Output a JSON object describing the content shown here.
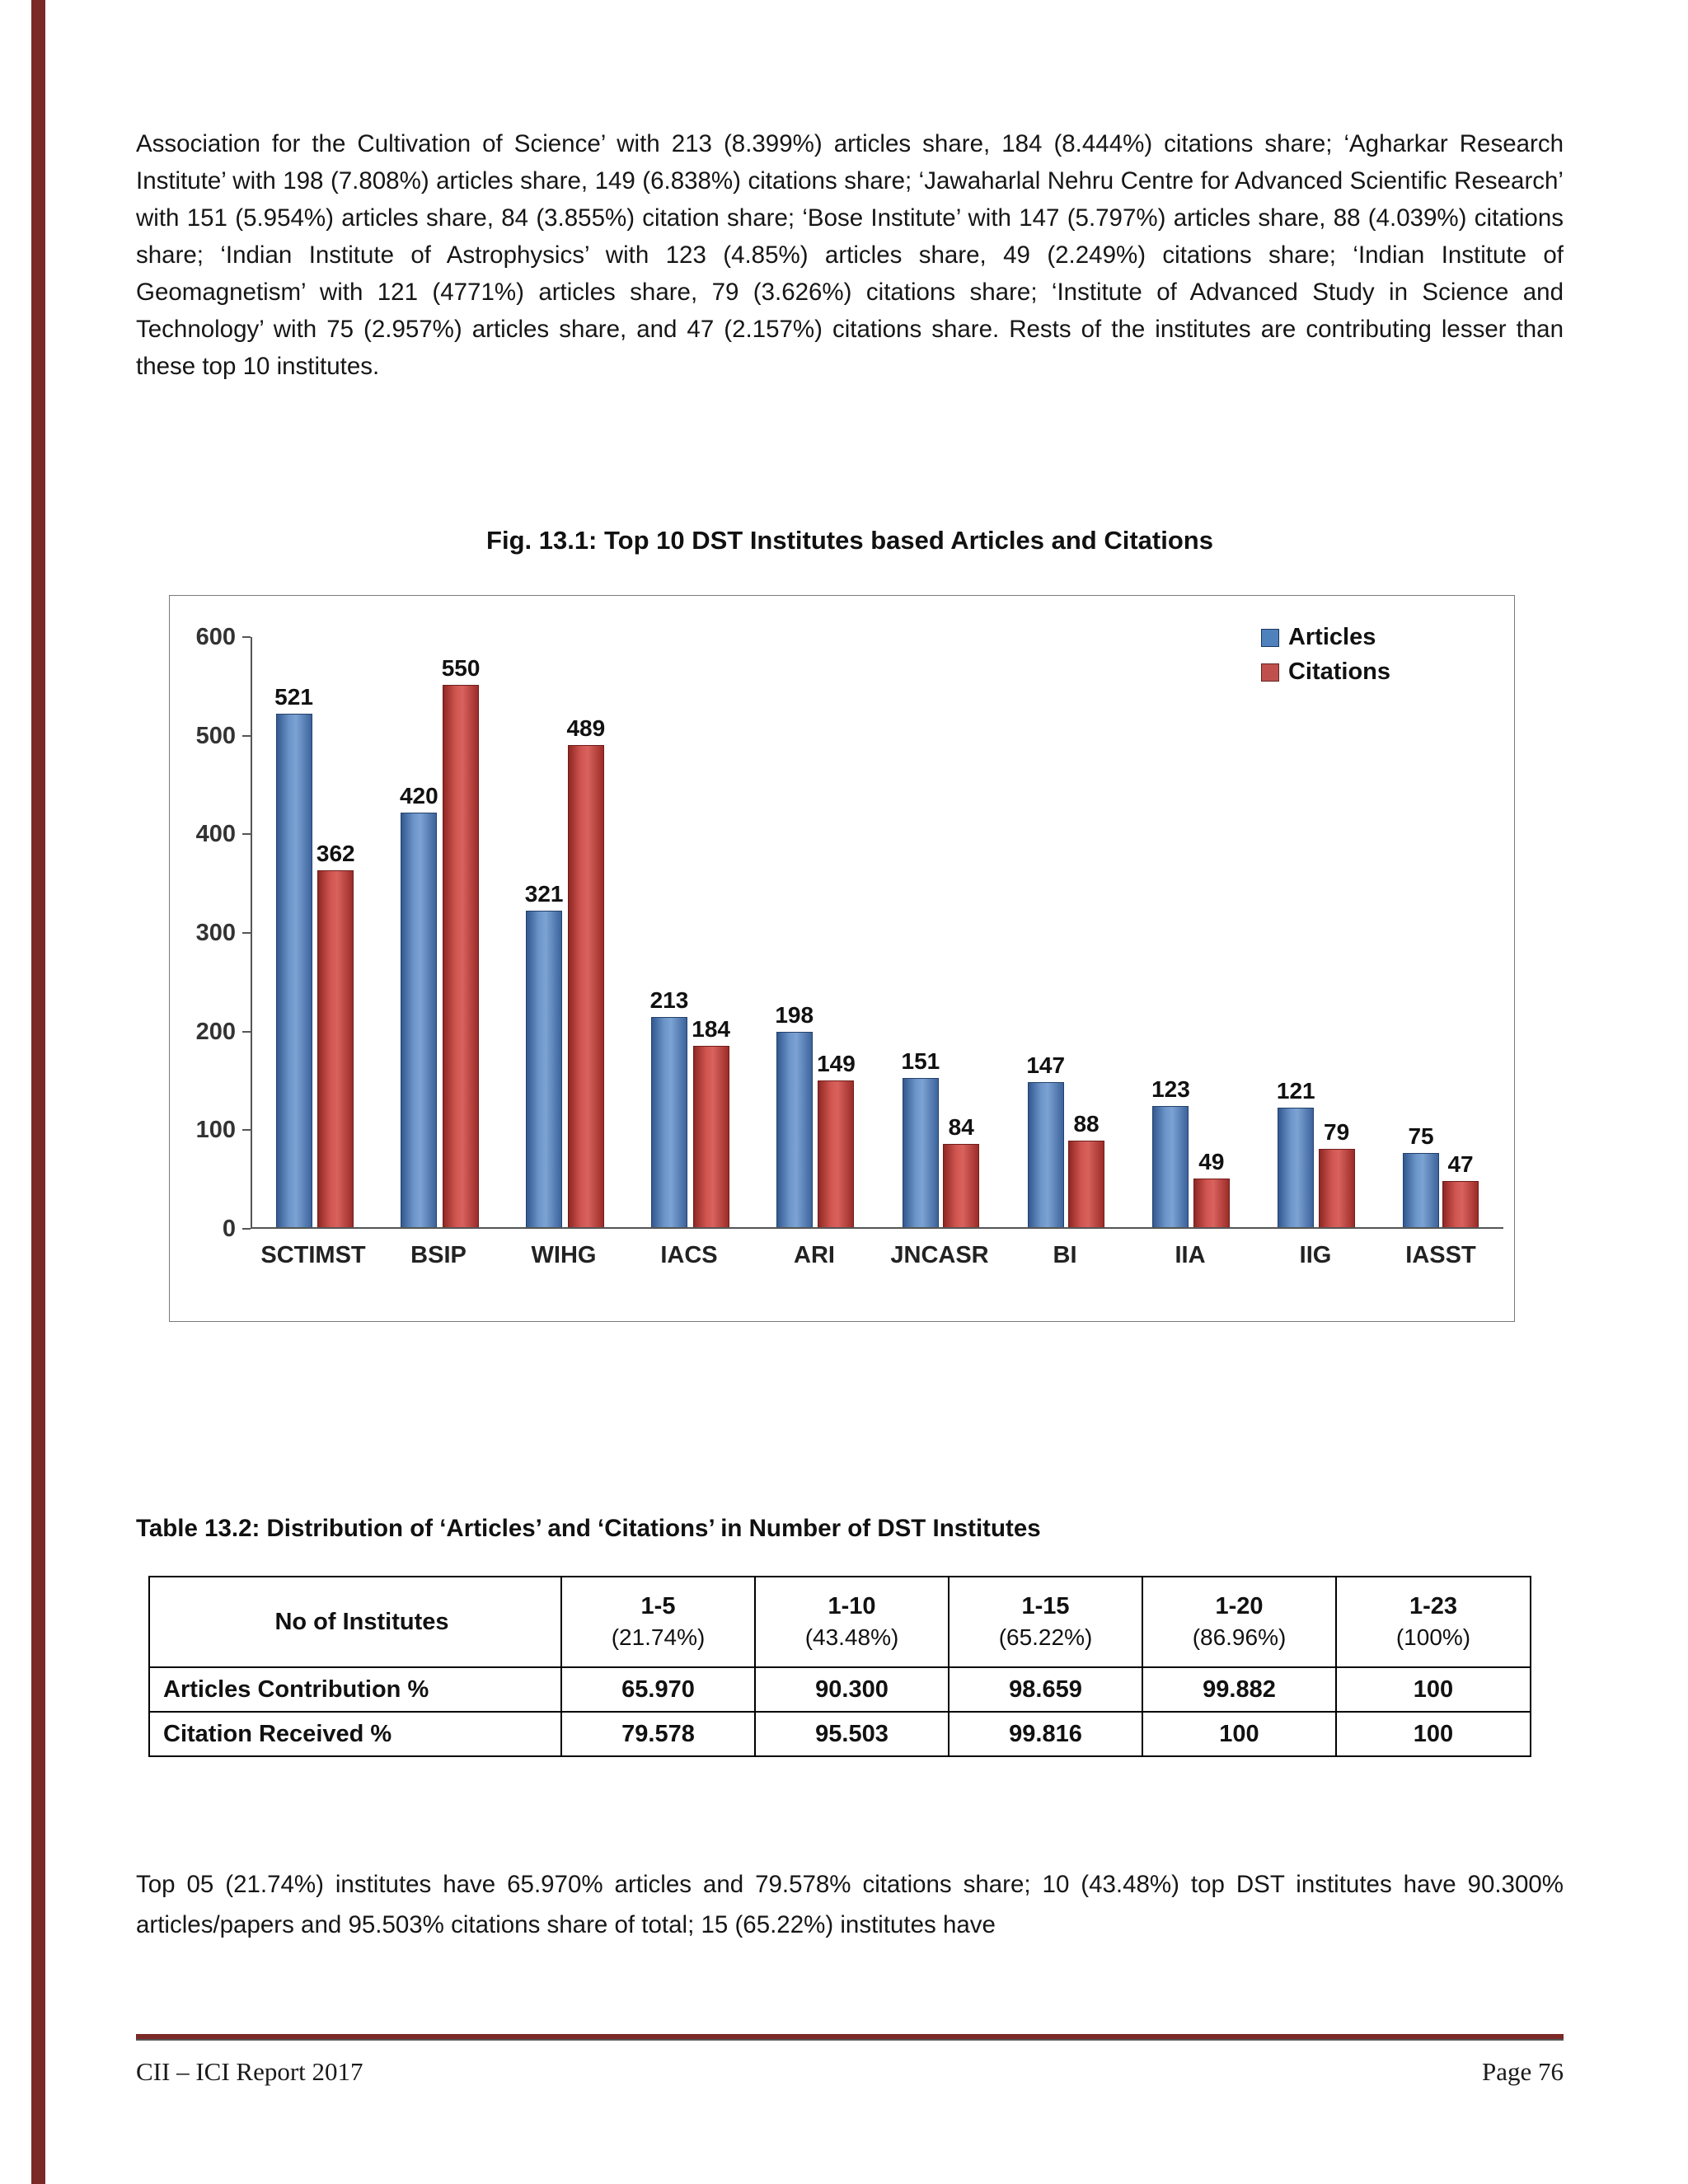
{
  "accent_colors": {
    "page_edge_stripe": "#7B2927",
    "articles_blue": "#4F81BD",
    "citations_red": "#C0504D"
  },
  "paragraph_top": "Association for the Cultivation of Science’ with 213 (8.399%) articles share, 184 (8.444%) citations share; ‘Agharkar Research Institute’ with 198 (7.808%) articles share, 149 (6.838%) citations share; ‘Jawaharlal Nehru Centre for Advanced Scientific Research’ with 151 (5.954%) articles share, 84 (3.855%) citation share; ‘Bose Institute’ with 147 (5.797%) articles share, 88 (4.039%) citations share; ‘Indian Institute of Astrophysics’ with 123 (4.85%) articles share, 49 (2.249%) citations share; ‘Indian Institute of Geomagnetism’ with 121 (4771%) articles share, 79 (3.626%) citations share; ‘Institute of Advanced Study in Science and Technology’ with 75 (2.957%) articles share, and 47 (2.157%) citations share. Rests of the institutes are contributing lesser than these top 10 institutes.",
  "figure": {
    "title": "Fig. 13.1: Top 10 DST Institutes based Articles and Citations"
  },
  "chart_data": {
    "type": "bar",
    "title": "Fig. 13.1: Top 10 DST Institutes based Articles and Citations",
    "categories": [
      "SCTIMST",
      "BSIP",
      "WIHG",
      "IACS",
      "ARI",
      "JNCASR",
      "BI",
      "IIA",
      "IIG",
      "IASST"
    ],
    "series": [
      {
        "name": "Articles",
        "color": "#4F81BD",
        "values": [
          521,
          420,
          321,
          213,
          198,
          151,
          147,
          123,
          121,
          75
        ]
      },
      {
        "name": "Citations",
        "color": "#C0504D",
        "values": [
          362,
          550,
          489,
          184,
          149,
          84,
          88,
          49,
          79,
          47
        ]
      }
    ],
    "xlabel": "",
    "ylabel": "",
    "ylim": [
      0,
      600
    ],
    "yticks": [
      0,
      100,
      200,
      300,
      400,
      500,
      600
    ],
    "legend_position": "top-right",
    "grid": false,
    "bar_value_labels": true
  },
  "table": {
    "title": "Table 13.2: Distribution of ‘Articles’ and ‘Citations’ in Number of DST Institutes",
    "row_header_label": "No of Institutes",
    "columns": [
      {
        "range": "1-5",
        "pct": "(21.74%)"
      },
      {
        "range": "1-10",
        "pct": "(43.48%)"
      },
      {
        "range": "1-15",
        "pct": "(65.22%)"
      },
      {
        "range": "1-20",
        "pct": "(86.96%)"
      },
      {
        "range": "1-23",
        "pct": "(100%)"
      }
    ],
    "rows": [
      {
        "label": "Articles Contribution %",
        "values": [
          "65.970",
          "90.300",
          "98.659",
          "99.882",
          "100"
        ]
      },
      {
        "label": "Citation Received %",
        "values": [
          "79.578",
          "95.503",
          "99.816",
          "100",
          "100"
        ]
      }
    ]
  },
  "paragraph_bottom": "Top 05 (21.74%) institutes have 65.970% articles and 79.578% citations share; 10 (43.48%) top DST institutes have 90.300% articles/papers and 95.503% citations share of total; 15 (65.22%) institutes have",
  "footer": {
    "left": "CII – ICI Report 2017",
    "right": "Page 76"
  }
}
